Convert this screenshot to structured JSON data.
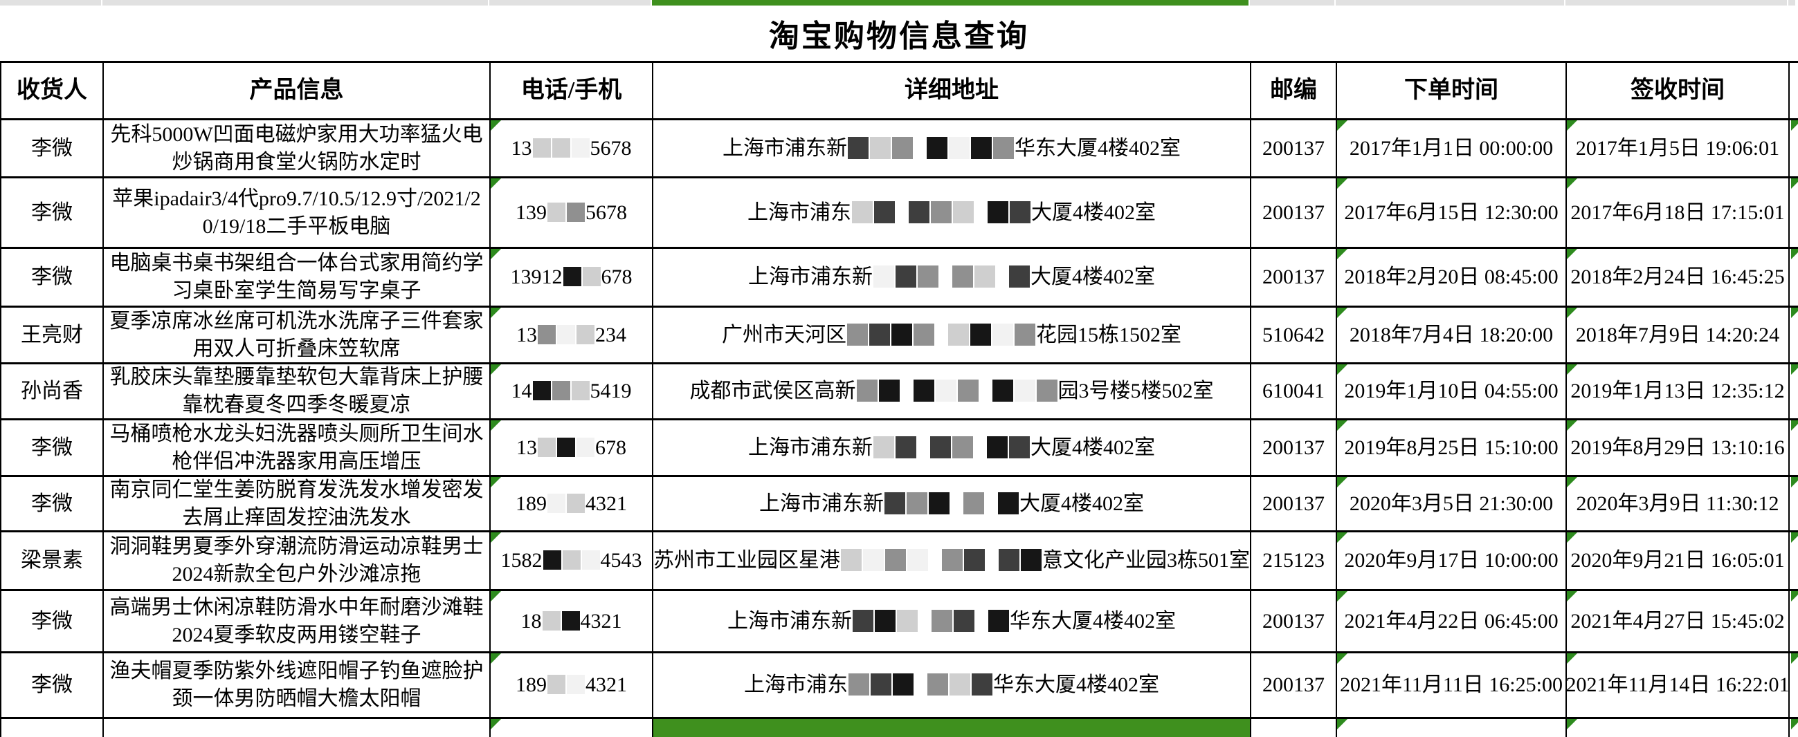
{
  "title": "淘宝购物信息查询",
  "colors": {
    "accent_green": "#3f901e",
    "triangle_green": "#2e8b1e",
    "strip_gray": "#e1e1e1",
    "border_black": "#000000"
  },
  "table": {
    "headers": [
      "收货人",
      "产品信息",
      "电话/手机",
      "详细地址",
      "邮编",
      "下单时间",
      "签收时间"
    ],
    "rows": [
      {
        "recipient": "李微",
        "product": "先科5000W凹面电磁炉家用大功率猛火电炒锅商用食堂火锅防水定时",
        "phone": {
          "prefix": "13",
          "boxes": [
            "l",
            "l",
            "w"
          ],
          "suffix": "5678"
        },
        "address": {
          "prefix": "上海市浦东新",
          "mosaic": [
            "d",
            "l",
            "m",
            "g",
            "b",
            "w",
            "b",
            "m"
          ],
          "suffix": "华东大厦4楼402室"
        },
        "zip": "200137",
        "order_time": "2017年1月1日 00:00:00",
        "sign_time": "2017年1月5日 19:06:01"
      },
      {
        "recipient": "李微",
        "product": "苹果ipadair3/4代pro9.7/10.5/12.9寸/2021/20/19/18二手平板电脑",
        "phone": {
          "prefix": "139",
          "boxes": [
            "l",
            "m"
          ],
          "suffix": "5678"
        },
        "address": {
          "prefix": "上海市浦东",
          "mosaic": [
            "l",
            "d",
            "g",
            "d",
            "m",
            "l",
            "g",
            "b",
            "d"
          ],
          "suffix": "大厦4楼402室"
        },
        "zip": "200137",
        "order_time": "2017年6月15日 12:30:00",
        "sign_time": "2017年6月18日 17:15:01"
      },
      {
        "recipient": "李微",
        "product": "电脑桌书桌书架组合一体台式家用简约学习桌卧室学生简易写字桌子",
        "phone": {
          "prefix": "13912",
          "boxes": [
            "b",
            "l"
          ],
          "suffix": "678"
        },
        "address": {
          "prefix": "上海市浦东新",
          "mosaic": [
            "w",
            "d",
            "m",
            "g",
            "m",
            "l",
            "g",
            "d"
          ],
          "suffix": "大厦4楼402室"
        },
        "zip": "200137",
        "order_time": "2018年2月20日 08:45:00",
        "sign_time": "2018年2月24日 16:45:25"
      },
      {
        "recipient": "王亮财",
        "product": "夏季凉席冰丝席可机洗水洗席子三件套家用双人可折叠床笠软席",
        "phone": {
          "prefix": "13",
          "boxes": [
            "m",
            "w",
            "l"
          ],
          "suffix": "234"
        },
        "address": {
          "prefix": "广州市天河区",
          "mosaic": [
            "m",
            "d",
            "b",
            "m",
            "g",
            "l",
            "b",
            "w",
            "m"
          ],
          "suffix": "花园15栋1502室"
        },
        "zip": "510642",
        "order_time": "2018年7月4日 18:20:00",
        "sign_time": "2018年7月9日 14:20:24"
      },
      {
        "recipient": "孙尚香",
        "product": "乳胶床头靠垫腰靠垫软包大靠背床上护腰靠枕春夏冬四季冬暖夏凉",
        "phone": {
          "prefix": "14",
          "boxes": [
            "b",
            "m",
            "l"
          ],
          "suffix": "5419"
        },
        "address": {
          "prefix": "成都市武侯区高新",
          "mosaic": [
            "m",
            "b",
            "g",
            "b",
            "w",
            "m",
            "g",
            "b",
            "w",
            "m"
          ],
          "suffix": "园3号楼5楼502室"
        },
        "zip": "610041",
        "order_time": "2019年1月10日 04:55:00",
        "sign_time": "2019年1月13日 12:35:12"
      },
      {
        "recipient": "李微",
        "product": "马桶喷枪水龙头妇洗器喷头厕所卫生间水枪伴侣冲洗器家用高压增压",
        "phone": {
          "prefix": "13",
          "boxes": [
            "l",
            "b",
            "w"
          ],
          "suffix": "678"
        },
        "address": {
          "prefix": "上海市浦东新",
          "mosaic": [
            "l",
            "d",
            "g",
            "d",
            "m",
            "g",
            "b",
            "d"
          ],
          "suffix": "大厦4楼402室"
        },
        "zip": "200137",
        "order_time": "2019年8月25日 15:10:00",
        "sign_time": "2019年8月29日 13:10:16"
      },
      {
        "recipient": "李微",
        "product": "南京同仁堂生姜防脱育发洗发水增发密发去屑止痒固发控油洗发水",
        "phone": {
          "prefix": "189",
          "boxes": [
            "w",
            "l"
          ],
          "suffix": "4321"
        },
        "address": {
          "prefix": "上海市浦东新",
          "mosaic": [
            "d",
            "m",
            "b",
            "g",
            "m",
            "g",
            "b"
          ],
          "suffix": "大厦4楼402室"
        },
        "zip": "200137",
        "order_time": "2020年3月5日 21:30:00",
        "sign_time": "2020年3月9日 11:30:12"
      },
      {
        "recipient": "梁景素",
        "product": "洞洞鞋男夏季外穿潮流防滑运动凉鞋男士2024新款全包户外沙滩凉拖",
        "phone": {
          "prefix": "1582",
          "boxes": [
            "b",
            "l",
            "w"
          ],
          "suffix": "4543"
        },
        "address": {
          "prefix": "苏州市工业园区星港",
          "mosaic": [
            "l",
            "w",
            "m",
            "w",
            "g",
            "m",
            "d",
            "g",
            "d",
            "b"
          ],
          "suffix": "意文化产业园3栋501室"
        },
        "zip": "215123",
        "order_time": "2020年9月17日 10:00:00",
        "sign_time": "2020年9月21日 16:05:01"
      },
      {
        "recipient": "李微",
        "product": "高端男士休闲凉鞋防滑水中年耐磨沙滩鞋2024夏季软皮两用镂空鞋子",
        "phone": {
          "prefix": "18",
          "boxes": [
            "l",
            "b"
          ],
          "suffix": "4321"
        },
        "address": {
          "prefix": "上海市浦东新",
          "mosaic": [
            "d",
            "b",
            "l",
            "g",
            "m",
            "d",
            "g",
            "b"
          ],
          "suffix": "华东大厦4楼402室"
        },
        "zip": "200137",
        "order_time": "2021年4月22日 06:45:00",
        "sign_time": "2021年4月27日 15:45:02"
      },
      {
        "recipient": "李微",
        "product": "渔夫帽夏季防紫外线遮阳帽子钓鱼遮脸护颈一体男防晒帽大檐太阳帽",
        "phone": {
          "prefix": "189",
          "boxes": [
            "l",
            "w"
          ],
          "suffix": "4321"
        },
        "address": {
          "prefix": "上海市浦东",
          "mosaic": [
            "m",
            "d",
            "b",
            "g",
            "m",
            "l",
            "d"
          ],
          "suffix": "华东大厦4楼402室"
        },
        "zip": "200137",
        "order_time": "2021年11月11日 16:25:00",
        "sign_time": "2021年11月14日 16:22:01"
      }
    ]
  }
}
